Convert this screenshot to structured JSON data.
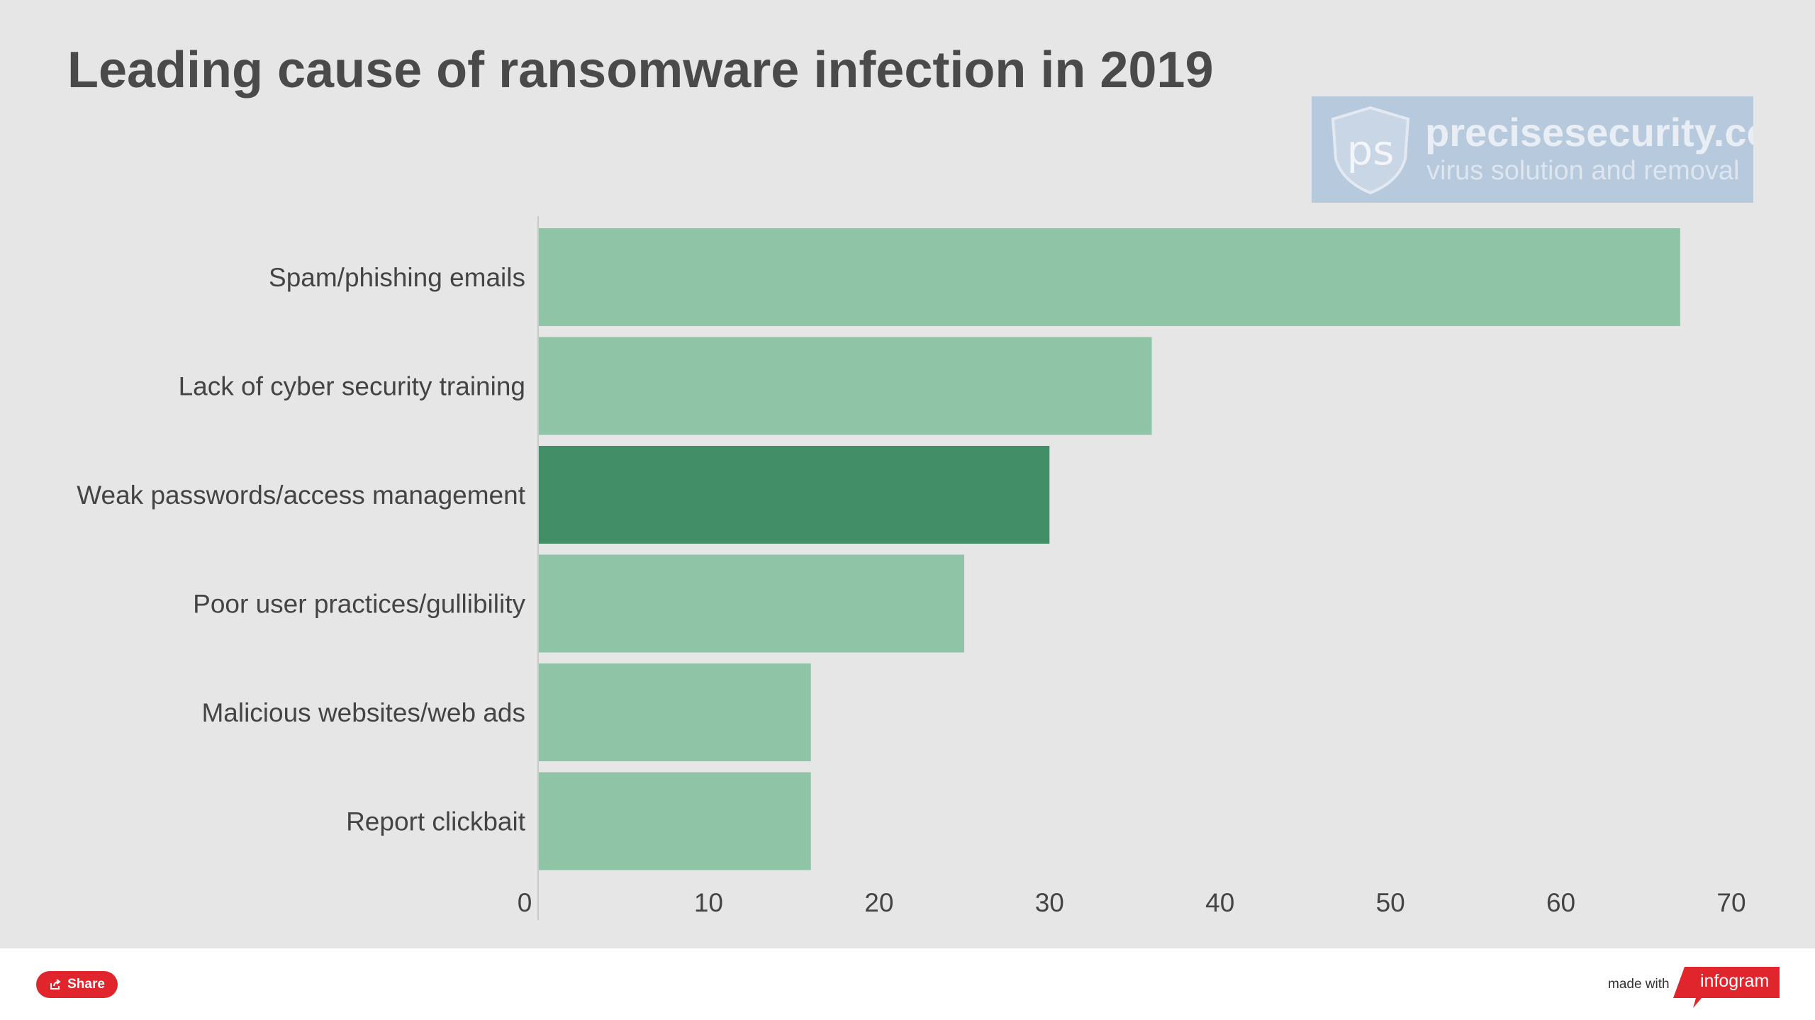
{
  "chart_data": {
    "type": "bar",
    "orientation": "horizontal",
    "title": "Leading cause of ransomware infection in 2019",
    "categories": [
      "Spam/phishing emails",
      "Lack of cyber security training",
      "Weak passwords/access management",
      "Poor user practices/gullibility",
      "Malicious websites/web ads",
      "Report clickbait"
    ],
    "values": [
      67,
      36,
      30,
      25,
      16,
      16
    ],
    "highlight_index": 2,
    "xlim": [
      0,
      70
    ],
    "xticks": [
      "0",
      "10",
      "20",
      "30",
      "40",
      "50",
      "60",
      "70"
    ],
    "grid": false,
    "colors": {
      "bar": "#8fc4a7",
      "bar_highlight": "#428f67",
      "background": "#e6e6e6"
    }
  },
  "watermark": {
    "logo_letters": "ps",
    "domain": "precisesecurity.com",
    "tagline": "virus solution and removal"
  },
  "footer": {
    "share_label": "Share",
    "share_icon": "share-icon",
    "made_with": "made with",
    "brand": "infogram",
    "brand_color": "#e0262c"
  }
}
